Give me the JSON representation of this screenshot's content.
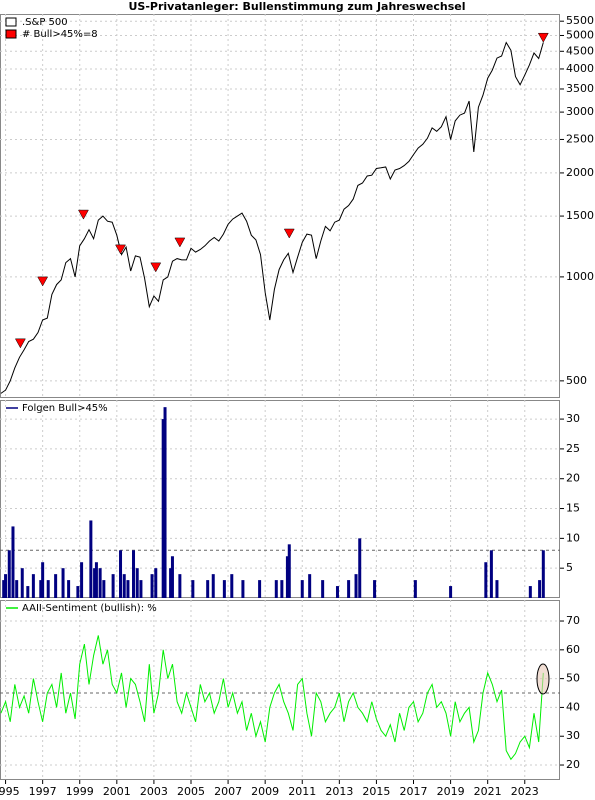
{
  "title": "US-Privatanleger: Bullenstimmung zum Jahreswechsel",
  "chart_data": [
    {
      "type": "line",
      "log_scale": true,
      "grid": true,
      "legend_symbol": "box",
      "xlim": [
        1994.7,
        2024.9
      ],
      "xticks": [
        1995,
        1997,
        1999,
        2001,
        2003,
        2005,
        2007,
        2009,
        2011,
        2013,
        2015,
        2017,
        2019,
        2021,
        2023
      ],
      "ylim": [
        446,
        5770
      ],
      "yticks": [
        500,
        1000,
        1500,
        2000,
        2500,
        3000,
        3500,
        4000,
        4500,
        5000,
        5500
      ],
      "x": [
        1994.75,
        1995,
        1995.25,
        1995.5,
        1995.75,
        1996,
        1996.25,
        1996.5,
        1996.75,
        1997,
        1997.25,
        1997.5,
        1997.75,
        1998,
        1998.25,
        1998.5,
        1998.75,
        1999,
        1999.25,
        1999.5,
        1999.75,
        2000,
        2000.25,
        2000.5,
        2000.75,
        2001,
        2001.25,
        2001.5,
        2001.75,
        2002,
        2002.25,
        2002.5,
        2002.75,
        2003,
        2003.25,
        2003.5,
        2003.75,
        2004,
        2004.25,
        2004.5,
        2004.75,
        2005,
        2005.25,
        2005.5,
        2005.75,
        2006,
        2006.25,
        2006.5,
        2006.75,
        2007,
        2007.25,
        2007.5,
        2007.75,
        2008,
        2008.25,
        2008.5,
        2008.75,
        2009,
        2009.25,
        2009.5,
        2009.75,
        2010,
        2010.25,
        2010.5,
        2010.75,
        2011,
        2011.25,
        2011.5,
        2011.75,
        2012,
        2012.25,
        2012.5,
        2012.75,
        2013,
        2013.25,
        2013.5,
        2013.75,
        2014,
        2014.25,
        2014.5,
        2014.75,
        2015,
        2015.25,
        2015.5,
        2015.75,
        2016,
        2016.25,
        2016.5,
        2016.75,
        2017,
        2017.25,
        2017.5,
        2017.75,
        2018,
        2018.25,
        2018.5,
        2018.75,
        2019,
        2019.25,
        2019.5,
        2019.75,
        2020,
        2020.25,
        2020.5,
        2020.75,
        2021,
        2021.25,
        2021.5,
        2021.75,
        2022,
        2022.25,
        2022.5,
        2022.75,
        2023,
        2023.25,
        2023.5,
        2023.75,
        2024
      ],
      "series": [
        {
          "name": ".S&P 500",
          "color": "#000000",
          "values": [
            460,
            470,
            500,
            545,
            585,
            615,
            650,
            660,
            690,
            750,
            760,
            890,
            950,
            980,
            1100,
            1130,
            1000,
            1230,
            1290,
            1370,
            1290,
            1460,
            1500,
            1450,
            1440,
            1320,
            1160,
            1220,
            1040,
            1150,
            1140,
            990,
            820,
            880,
            850,
            980,
            1000,
            1110,
            1130,
            1120,
            1120,
            1210,
            1180,
            1200,
            1230,
            1270,
            1300,
            1270,
            1330,
            1420,
            1470,
            1500,
            1530,
            1450,
            1320,
            1280,
            1160,
            900,
            750,
            920,
            1050,
            1120,
            1170,
            1030,
            1140,
            1260,
            1330,
            1320,
            1130,
            1270,
            1400,
            1360,
            1440,
            1460,
            1570,
            1610,
            1680,
            1840,
            1870,
            1960,
            1970,
            2060,
            2070,
            2080,
            1920,
            2040,
            2060,
            2100,
            2160,
            2260,
            2360,
            2420,
            2520,
            2700,
            2640,
            2720,
            2910,
            2500,
            2830,
            2940,
            2980,
            3230,
            2300,
            3100,
            3360,
            3760,
            3970,
            4300,
            4360,
            4770,
            4530,
            3800,
            3600,
            3840,
            4110,
            4450,
            4290,
            4770
          ]
        },
        {
          "name": "# Bull>45%=8",
          "color": "#ff0000",
          "marker": "triangle",
          "x": [
            1995.8,
            1997.0,
            1999.2,
            2001.2,
            2003.1,
            2004.4,
            2010.3,
            2024.0
          ],
          "values": [
            640,
            967,
            1510,
            1197,
            1062,
            1254,
            1331,
            4910
          ]
        }
      ]
    },
    {
      "type": "bar",
      "grid": true,
      "threshold": 8,
      "xlim": [
        1994.7,
        2024.9
      ],
      "xticks": [
        1995,
        1997,
        1999,
        2001,
        2003,
        2005,
        2007,
        2009,
        2011,
        2013,
        2015,
        2017,
        2019,
        2021,
        2023
      ],
      "ylim": [
        0,
        33.2
      ],
      "yticks": [
        5,
        10,
        15,
        20,
        25,
        30
      ],
      "series": [
        {
          "name": "Folgen Bull>45%",
          "color": "#000080",
          "x": [
            1994.9,
            1995.0,
            1995.2,
            1995.4,
            1995.6,
            1995.9,
            1996.2,
            1996.5,
            1996.9,
            1997.0,
            1997.3,
            1997.7,
            1998.1,
            1998.4,
            1998.9,
            1999.1,
            1999.6,
            1999.8,
            1999.9,
            2000.1,
            2000.3,
            2000.8,
            2001.2,
            2001.4,
            2001.6,
            2001.9,
            2002.1,
            2002.3,
            2002.9,
            2003.1,
            2003.5,
            2003.6,
            2003.9,
            2004.0,
            2004.4,
            2005.1,
            2005.9,
            2006.2,
            2006.8,
            2007.2,
            2007.8,
            2008.7,
            2009.6,
            2009.9,
            2010.2,
            2010.3,
            2011.0,
            2011.4,
            2012.1,
            2012.9,
            2013.5,
            2013.9,
            2014.1,
            2014.9,
            2017.1,
            2019.0,
            2020.9,
            2021.2,
            2021.5,
            2023.3,
            2023.8,
            2024.0
          ],
          "values": [
            3,
            4,
            8,
            12,
            3,
            5,
            2,
            4,
            3,
            6,
            3,
            4,
            5,
            3,
            2,
            6,
            13,
            5,
            6,
            5,
            3,
            4,
            8,
            4,
            3,
            8,
            5,
            3,
            4,
            5,
            30,
            32,
            5,
            7,
            4,
            3,
            3,
            4,
            3,
            4,
            3,
            3,
            3,
            3,
            7,
            9,
            3,
            4,
            3,
            2,
            3,
            4,
            10,
            3,
            3,
            2,
            6,
            8,
            3,
            2,
            3,
            8
          ]
        }
      ]
    },
    {
      "type": "line",
      "grid": true,
      "threshold": 45,
      "xlim": [
        1994.7,
        2024.9
      ],
      "xticks": [
        1995,
        1997,
        1999,
        2001,
        2003,
        2005,
        2007,
        2009,
        2011,
        2013,
        2015,
        2017,
        2019,
        2021,
        2023
      ],
      "ylim": [
        14.8,
        77.3
      ],
      "yticks": [
        20,
        30,
        40,
        50,
        60,
        70
      ],
      "x": [
        1994.75,
        1995,
        1995.25,
        1995.5,
        1995.75,
        1996,
        1996.25,
        1996.5,
        1996.75,
        1997,
        1997.25,
        1997.5,
        1997.75,
        1998,
        1998.25,
        1998.5,
        1998.75,
        1999,
        1999.25,
        1999.5,
        1999.75,
        2000,
        2000.25,
        2000.5,
        2000.75,
        2001,
        2001.25,
        2001.5,
        2001.75,
        2002,
        2002.25,
        2002.5,
        2002.75,
        2003,
        2003.25,
        2003.5,
        2003.75,
        2004,
        2004.25,
        2004.5,
        2004.75,
        2005,
        2005.25,
        2005.5,
        2005.75,
        2006,
        2006.25,
        2006.5,
        2006.75,
        2007,
        2007.25,
        2007.5,
        2007.75,
        2008,
        2008.25,
        2008.5,
        2008.75,
        2009,
        2009.25,
        2009.5,
        2009.75,
        2010,
        2010.25,
        2010.5,
        2010.75,
        2011,
        2011.25,
        2011.5,
        2011.75,
        2012,
        2012.25,
        2012.5,
        2012.75,
        2013,
        2013.25,
        2013.5,
        2013.75,
        2014,
        2014.25,
        2014.5,
        2014.75,
        2015,
        2015.25,
        2015.5,
        2015.75,
        2016,
        2016.25,
        2016.5,
        2016.75,
        2017,
        2017.25,
        2017.5,
        2017.75,
        2018,
        2018.25,
        2018.5,
        2018.75,
        2019,
        2019.25,
        2019.5,
        2019.75,
        2020,
        2020.25,
        2020.5,
        2020.75,
        2021,
        2021.25,
        2021.5,
        2021.75,
        2022,
        2022.25,
        2022.5,
        2022.75,
        2023,
        2023.25,
        2023.5,
        2023.75,
        2024
      ],
      "series": [
        {
          "name": "AAII-Sentiment (bullish): %",
          "color": "#00ee00",
          "values": [
            38,
            42,
            35,
            48,
            40,
            44,
            38,
            50,
            42,
            35,
            45,
            48,
            40,
            52,
            38,
            45,
            36,
            55,
            62,
            48,
            58,
            65,
            55,
            60,
            48,
            45,
            52,
            40,
            50,
            48,
            42,
            35,
            55,
            38,
            45,
            60,
            50,
            55,
            42,
            38,
            45,
            40,
            35,
            48,
            42,
            45,
            38,
            42,
            50,
            40,
            45,
            38,
            42,
            32,
            38,
            30,
            35,
            28,
            40,
            45,
            48,
            42,
            38,
            32,
            48,
            50,
            38,
            30,
            45,
            42,
            35,
            38,
            40,
            45,
            35,
            42,
            45,
            40,
            38,
            35,
            42,
            36,
            32,
            30,
            34,
            28,
            38,
            32,
            40,
            42,
            35,
            38,
            45,
            48,
            40,
            42,
            38,
            30,
            42,
            35,
            38,
            40,
            28,
            32,
            45,
            52,
            48,
            42,
            46,
            25,
            22,
            24,
            28,
            30,
            26,
            38,
            28,
            52
          ]
        }
      ]
    }
  ]
}
